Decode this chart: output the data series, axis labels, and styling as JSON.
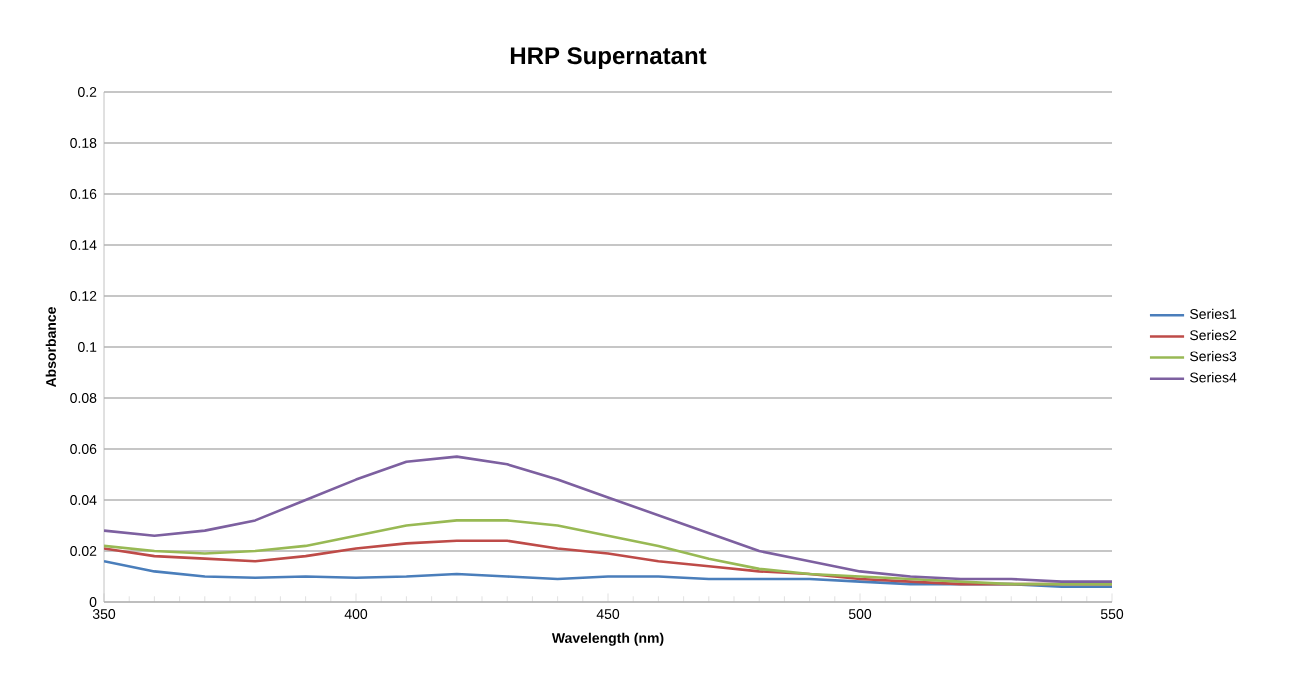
{
  "chart_data": {
    "type": "line",
    "title": "HRP Supernatant",
    "xlabel": "Wavelength (nm)",
    "ylabel": "Absorbance",
    "x": [
      350,
      360,
      370,
      380,
      390,
      400,
      410,
      420,
      430,
      440,
      450,
      460,
      470,
      480,
      490,
      500,
      510,
      520,
      530,
      540,
      550
    ],
    "series": [
      {
        "name": "Series1",
        "color": "#4a7ebb",
        "values": [
          0.016,
          0.012,
          0.01,
          0.0095,
          0.01,
          0.0095,
          0.01,
          0.011,
          0.01,
          0.009,
          0.01,
          0.01,
          0.009,
          0.009,
          0.009,
          0.008,
          0.007,
          0.007,
          0.007,
          0.006,
          0.006
        ]
      },
      {
        "name": "Series2",
        "color": "#be4b48",
        "values": [
          0.021,
          0.018,
          0.017,
          0.016,
          0.018,
          0.021,
          0.023,
          0.024,
          0.024,
          0.021,
          0.019,
          0.016,
          0.014,
          0.012,
          0.011,
          0.009,
          0.008,
          0.007,
          0.007,
          0.007,
          0.007
        ]
      },
      {
        "name": "Series3",
        "color": "#98b954",
        "values": [
          0.022,
          0.02,
          0.019,
          0.02,
          0.022,
          0.026,
          0.03,
          0.032,
          0.032,
          0.03,
          0.026,
          0.022,
          0.017,
          0.013,
          0.011,
          0.01,
          0.009,
          0.008,
          0.007,
          0.007,
          0.007
        ]
      },
      {
        "name": "Series4",
        "color": "#7d60a0",
        "values": [
          0.028,
          0.026,
          0.028,
          0.032,
          0.04,
          0.048,
          0.055,
          0.057,
          0.054,
          0.048,
          0.041,
          0.034,
          0.027,
          0.02,
          0.016,
          0.012,
          0.01,
          0.009,
          0.009,
          0.008,
          0.008
        ]
      }
    ],
    "xlim": [
      350,
      550
    ],
    "xticks": [
      350,
      400,
      450,
      500,
      550
    ],
    "ylim": [
      0,
      0.2
    ],
    "yticks": [
      0,
      0.02,
      0.04,
      0.06,
      0.08,
      0.1,
      0.12,
      0.14,
      0.16,
      0.18,
      0.2
    ],
    "grid": "y",
    "legend": "right",
    "marker": "none",
    "line_style": "solid"
  }
}
